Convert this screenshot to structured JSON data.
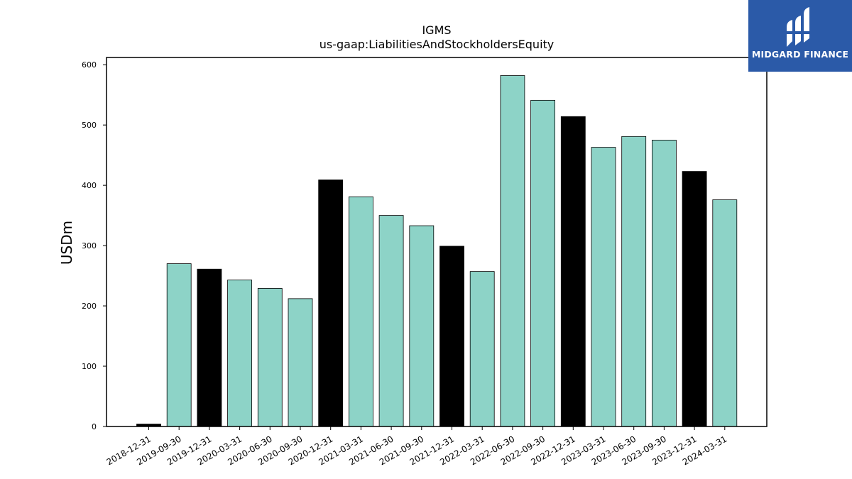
{
  "brand": {
    "name": "MIDGARD FINANCE",
    "logo_icon": "midgard-logo-icon",
    "background_color": "#2b5aa8"
  },
  "chart_data": {
    "type": "bar",
    "title": "IGMS",
    "subtitle": "us-gaap:LiabilitiesAndStockholdersEquity",
    "xlabel": "",
    "ylabel": "USDm",
    "ylim": [
      0,
      612
    ],
    "yticks": [
      0,
      100,
      200,
      300,
      400,
      500,
      600
    ],
    "grid": false,
    "colors": {
      "fiscal_year_end": "#000000",
      "quarter": "#8dd3c7",
      "edge": "#000000"
    },
    "categories": [
      "2018-12-31",
      "2019-09-30",
      "2019-12-31",
      "2020-03-31",
      "2020-06-30",
      "2020-09-30",
      "2020-12-31",
      "2021-03-31",
      "2021-06-30",
      "2021-09-30",
      "2021-12-31",
      "2022-03-31",
      "2022-06-30",
      "2022-09-30",
      "2022-12-31",
      "2023-03-31",
      "2023-06-30",
      "2023-09-30",
      "2023-12-31",
      "2024-03-31"
    ],
    "values": [
      4,
      270,
      261,
      243,
      229,
      212,
      409,
      381,
      350,
      333,
      299,
      257,
      582,
      541,
      514,
      463,
      481,
      475,
      423,
      376
    ],
    "bar_type": [
      "year",
      "quarter",
      "year",
      "quarter",
      "quarter",
      "quarter",
      "year",
      "quarter",
      "quarter",
      "quarter",
      "year",
      "quarter",
      "quarter",
      "quarter",
      "year",
      "quarter",
      "quarter",
      "quarter",
      "year",
      "quarter"
    ]
  }
}
